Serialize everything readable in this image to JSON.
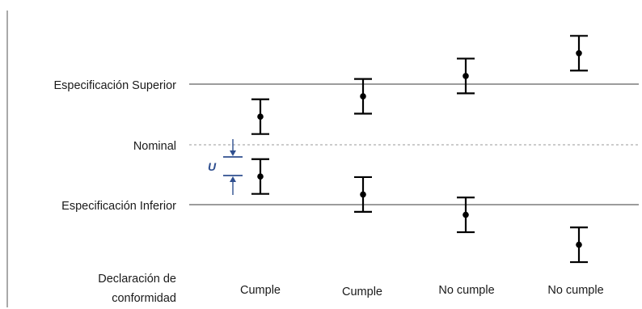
{
  "levels": {
    "upper_spec": "Especificación Superior",
    "nominal": "Nominal",
    "lower_spec": "Especificación Inferior"
  },
  "uncertainty_label": "U",
  "declaration_label_line1": "Declaración de",
  "declaration_label_line2": "conformidad",
  "cases": [
    {
      "verdict": "Cumple"
    },
    {
      "verdict": "Cumple"
    },
    {
      "verdict": "No cumple"
    },
    {
      "verdict": "No cumple"
    }
  ],
  "chart_data": {
    "type": "scatter",
    "y_levels": [
      "Especificación Inferior",
      "Nominal",
      "Especificación Superior"
    ],
    "points": [
      {
        "case": 1,
        "label": "Cumple",
        "value": 0.47,
        "err": 0.29
      },
      {
        "case": 1,
        "label": "Cumple",
        "value": -0.53,
        "err": 0.29
      },
      {
        "case": 2,
        "label": "Cumple",
        "value": 0.81,
        "err": 0.29
      },
      {
        "case": 2,
        "label": "Cumple",
        "value": -0.83,
        "err": 0.29
      },
      {
        "case": 3,
        "label": "No cumple",
        "value": 1.15,
        "err": 0.29
      },
      {
        "case": 3,
        "label": "No cumple",
        "value": -1.17,
        "err": 0.29
      },
      {
        "case": 4,
        "label": "No cumple",
        "value": 1.53,
        "err": 0.29
      },
      {
        "case": 4,
        "label": "No cumple",
        "value": -1.67,
        "err": 0.29
      }
    ],
    "colors": {
      "line": "#000000",
      "dashed": "#999999",
      "accent": "#2f4f8f"
    }
  }
}
